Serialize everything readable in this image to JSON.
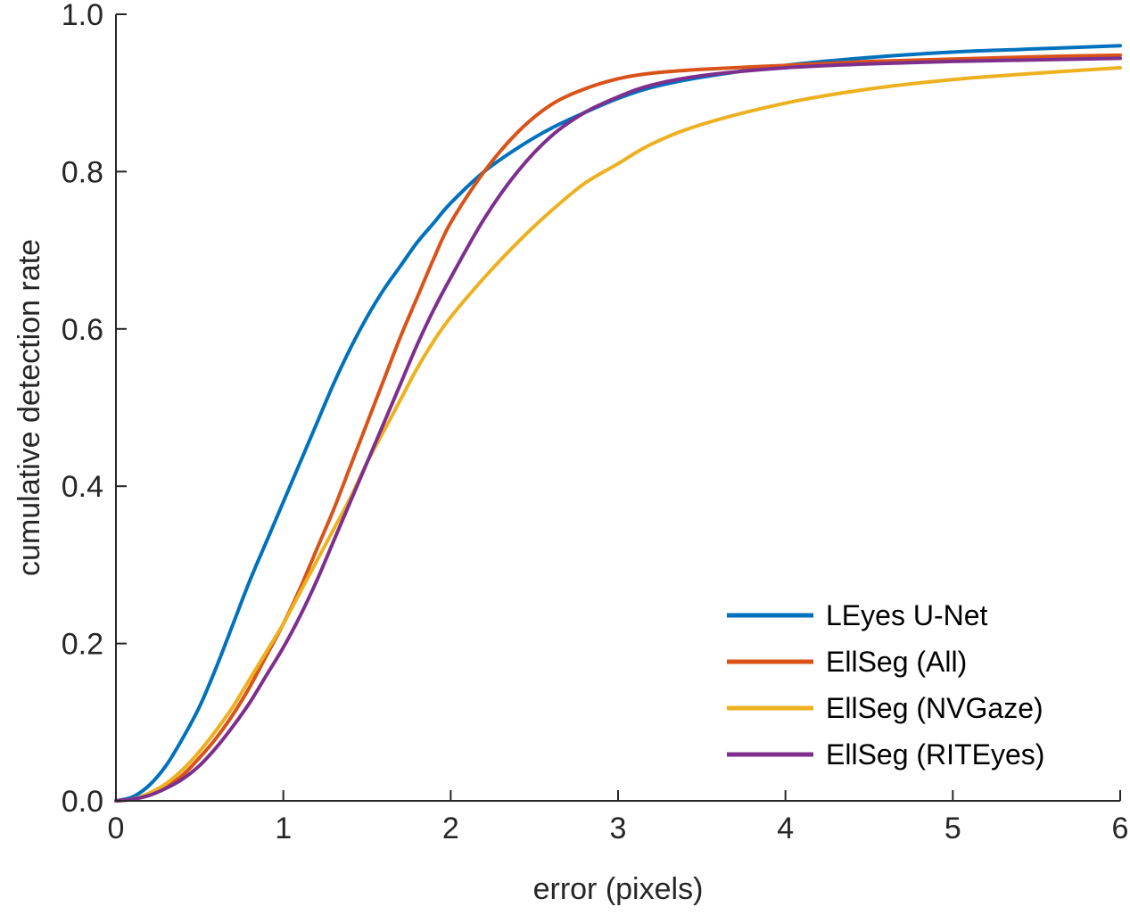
{
  "chart_data": {
    "type": "line",
    "title": "",
    "xlabel": "error (pixels)",
    "ylabel": "cumulative detection rate",
    "xlim": [
      0,
      6
    ],
    "ylim": [
      0,
      1
    ],
    "xticks": [
      0,
      1,
      2,
      3,
      4,
      5,
      6
    ],
    "xtick_labels": [
      "0",
      "1",
      "2",
      "3",
      "4",
      "5",
      "6"
    ],
    "yticks": [
      0,
      0.2,
      0.4,
      0.6,
      0.8,
      1.0
    ],
    "ytick_labels": [
      "0.0",
      "0.2",
      "0.4",
      "0.6",
      "0.8",
      "1.0"
    ],
    "grid": false,
    "legend_position": "bottom-right",
    "series": [
      {
        "name": "LEyes U-Net",
        "color": "#0072BD",
        "x": [
          0,
          0.1,
          0.2,
          0.3,
          0.4,
          0.5,
          0.6,
          0.7,
          0.8,
          0.9,
          1.0,
          1.1,
          1.2,
          1.3,
          1.4,
          1.5,
          1.6,
          1.7,
          1.8,
          1.9,
          2.0,
          2.2,
          2.4,
          2.6,
          2.8,
          3.0,
          3.2,
          3.5,
          4.0,
          4.5,
          5.0,
          5.5,
          6.0
        ],
        "y": [
          0,
          0.005,
          0.02,
          0.045,
          0.08,
          0.12,
          0.17,
          0.225,
          0.28,
          0.33,
          0.38,
          0.43,
          0.48,
          0.53,
          0.575,
          0.615,
          0.65,
          0.68,
          0.71,
          0.735,
          0.76,
          0.8,
          0.83,
          0.855,
          0.875,
          0.893,
          0.907,
          0.92,
          0.935,
          0.945,
          0.952,
          0.956,
          0.96
        ]
      },
      {
        "name": "EllSeg (All)",
        "color": "#D95319",
        "x": [
          0,
          0.1,
          0.2,
          0.3,
          0.4,
          0.5,
          0.6,
          0.7,
          0.8,
          0.9,
          1.0,
          1.1,
          1.2,
          1.3,
          1.4,
          1.5,
          1.6,
          1.7,
          1.8,
          1.9,
          2.0,
          2.2,
          2.4,
          2.6,
          2.8,
          3.0,
          3.2,
          3.5,
          4.0,
          4.5,
          5.0,
          5.5,
          6.0
        ],
        "y": [
          0,
          0.002,
          0.008,
          0.018,
          0.033,
          0.055,
          0.08,
          0.11,
          0.145,
          0.185,
          0.225,
          0.27,
          0.32,
          0.37,
          0.425,
          0.48,
          0.535,
          0.59,
          0.64,
          0.69,
          0.735,
          0.8,
          0.85,
          0.885,
          0.905,
          0.918,
          0.925,
          0.93,
          0.935,
          0.94,
          0.943,
          0.946,
          0.948
        ]
      },
      {
        "name": "EllSeg (NVGaze)",
        "color": "#EDB120",
        "x": [
          0,
          0.1,
          0.2,
          0.3,
          0.4,
          0.5,
          0.6,
          0.7,
          0.8,
          0.9,
          1.0,
          1.1,
          1.2,
          1.3,
          1.4,
          1.5,
          1.6,
          1.7,
          1.8,
          1.9,
          2.0,
          2.2,
          2.4,
          2.6,
          2.8,
          3.0,
          3.2,
          3.5,
          4.0,
          4.5,
          5.0,
          5.5,
          6.0
        ],
        "y": [
          0,
          0.002,
          0.01,
          0.022,
          0.04,
          0.063,
          0.09,
          0.12,
          0.155,
          0.19,
          0.225,
          0.265,
          0.305,
          0.345,
          0.385,
          0.43,
          0.47,
          0.51,
          0.55,
          0.585,
          0.615,
          0.665,
          0.71,
          0.75,
          0.785,
          0.81,
          0.835,
          0.86,
          0.887,
          0.905,
          0.917,
          0.925,
          0.932
        ]
      },
      {
        "name": "EllSeg (RITEyes)",
        "color": "#7E2F8E",
        "x": [
          0,
          0.1,
          0.2,
          0.3,
          0.4,
          0.5,
          0.6,
          0.7,
          0.8,
          0.9,
          1.0,
          1.1,
          1.2,
          1.3,
          1.4,
          1.5,
          1.6,
          1.7,
          1.8,
          1.9,
          2.0,
          2.2,
          2.4,
          2.6,
          2.8,
          3.0,
          3.2,
          3.5,
          4.0,
          4.5,
          5.0,
          5.5,
          6.0
        ],
        "y": [
          0,
          0.002,
          0.007,
          0.016,
          0.028,
          0.045,
          0.068,
          0.095,
          0.125,
          0.16,
          0.195,
          0.235,
          0.28,
          0.33,
          0.38,
          0.43,
          0.48,
          0.53,
          0.58,
          0.625,
          0.665,
          0.74,
          0.8,
          0.845,
          0.875,
          0.895,
          0.91,
          0.922,
          0.932,
          0.937,
          0.94,
          0.942,
          0.944
        ]
      }
    ]
  }
}
